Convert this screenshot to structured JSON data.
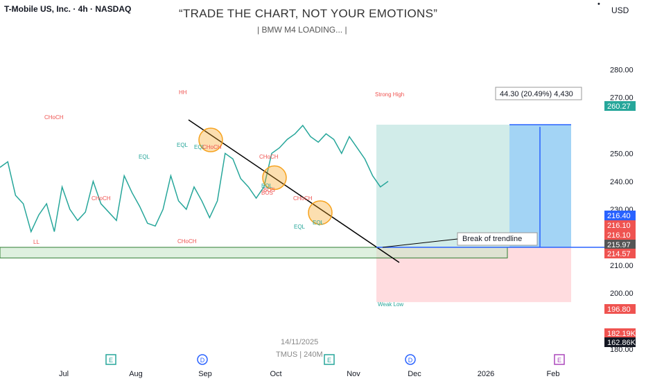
{
  "header": {
    "symbol": "T-Mobile US, Inc. · 4h · NASDAQ",
    "quote": "“TRADE THE CHART, NOT YOUR EMOTIONS”",
    "subtitle": "| BMW M4 LOADING... |",
    "currency": "USD"
  },
  "colors": {
    "up": "#26a69a",
    "down": "#ef5350",
    "target": "#2962ff",
    "target_zone": "#b2dfdb",
    "stop_zone": "#ffcdd2",
    "highlight": "#f6a21d"
  },
  "chart_data": {
    "type": "candlestick",
    "symbol": "TMUS",
    "timeframe": "4h",
    "exchange": "NASDAQ",
    "ylim": [
      178,
      290
    ],
    "y_ticks": [
      180,
      190,
      200,
      210,
      220,
      230,
      240,
      250,
      260,
      270,
      280
    ],
    "y_tick_labels": [
      "180.00",
      "200.00",
      "210.00",
      "230.00",
      "240.00",
      "250.00",
      "270.00",
      "280.00"
    ],
    "x_ticks": [
      "Jul",
      "Aug",
      "Sep",
      "Oct",
      "Nov",
      "Dec",
      "2026",
      "Feb"
    ],
    "price_path": [
      [
        0,
        245
      ],
      [
        0.02,
        247
      ],
      [
        0.04,
        235
      ],
      [
        0.06,
        232
      ],
      [
        0.08,
        222
      ],
      [
        0.1,
        228
      ],
      [
        0.12,
        232
      ],
      [
        0.14,
        222
      ],
      [
        0.16,
        238
      ],
      [
        0.18,
        230
      ],
      [
        0.2,
        226
      ],
      [
        0.22,
        229
      ],
      [
        0.24,
        240
      ],
      [
        0.26,
        232
      ],
      [
        0.28,
        229
      ],
      [
        0.3,
        226
      ],
      [
        0.32,
        242
      ],
      [
        0.34,
        236
      ],
      [
        0.36,
        231
      ],
      [
        0.38,
        225
      ],
      [
        0.4,
        224
      ],
      [
        0.42,
        230
      ],
      [
        0.44,
        242
      ],
      [
        0.46,
        233
      ],
      [
        0.48,
        230
      ],
      [
        0.5,
        238
      ],
      [
        0.52,
        233
      ],
      [
        0.54,
        227
      ],
      [
        0.56,
        233
      ],
      [
        0.58,
        250
      ],
      [
        0.6,
        248
      ],
      [
        0.62,
        241
      ],
      [
        0.64,
        238
      ],
      [
        0.66,
        234
      ],
      [
        0.68,
        238
      ],
      [
        0.7,
        250
      ],
      [
        0.72,
        252
      ],
      [
        0.74,
        255
      ],
      [
        0.76,
        257
      ],
      [
        0.78,
        260
      ],
      [
        0.8,
        256
      ],
      [
        0.82,
        254
      ],
      [
        0.84,
        257
      ],
      [
        0.86,
        255
      ],
      [
        0.88,
        250
      ],
      [
        0.9,
        256
      ],
      [
        0.92,
        252
      ],
      [
        0.94,
        248
      ],
      [
        0.96,
        242
      ],
      [
        0.98,
        238
      ],
      [
        1,
        240
      ]
    ],
    "price_labels": [
      {
        "label": "260.27",
        "role": "target"
      },
      {
        "label": "216.40",
        "role": "entry"
      },
      {
        "label": "216.10",
        "role": "level"
      },
      {
        "label": "216.10",
        "role": "level"
      },
      {
        "label": "215.97",
        "role": "last"
      },
      {
        "label": "214.57",
        "role": "level"
      },
      {
        "label": "196.80",
        "role": "stop"
      },
      {
        "label": "182.19K",
        "role": "volume_ma"
      },
      {
        "label": "162.86K",
        "role": "volume"
      }
    ],
    "target_label": "44.30 (20.49%) 4,430",
    "callout": "Break of trendline",
    "annotations": [
      "HH",
      "Strong High",
      "CHoCH",
      "EQL",
      "EQL",
      "CHoCH",
      "BOS",
      "EQL",
      "CHoCH",
      "LL",
      "CHoCH",
      "Weak Low",
      "CHoCH",
      "EQL",
      "BOS",
      "EQL",
      "CHoCH",
      "EQL"
    ],
    "watermark": {
      "date": "14/11/2025",
      "ticker": "TMUS | 240M"
    },
    "event_markers": [
      "E",
      "D",
      "E",
      "D",
      "E"
    ]
  }
}
